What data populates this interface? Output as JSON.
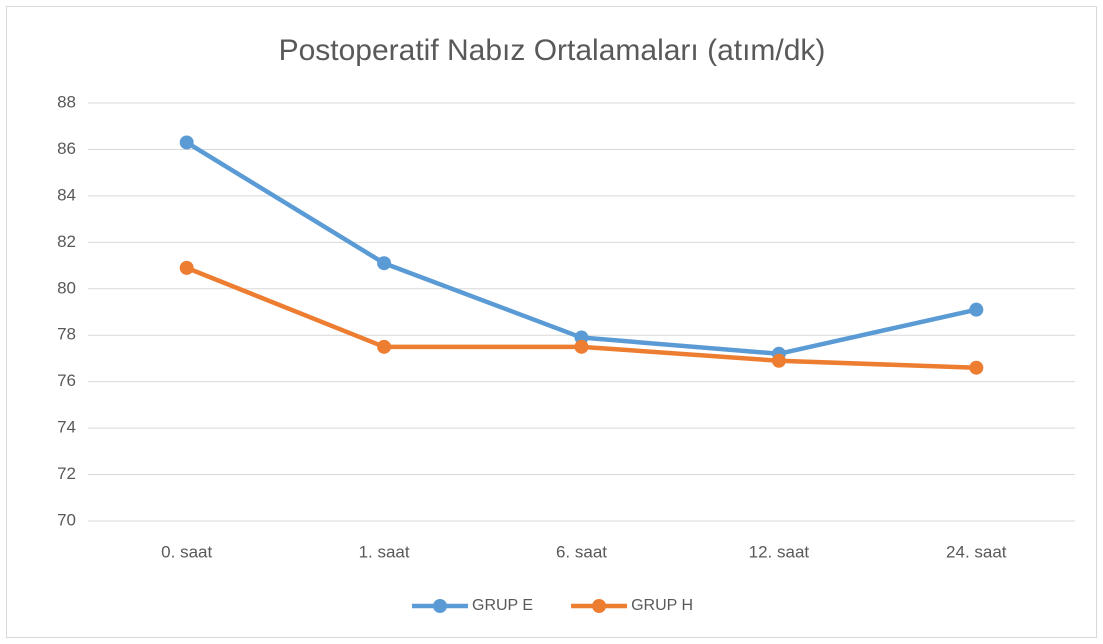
{
  "chart_data": {
    "type": "line",
    "title": "Postoperatif Nabız Ortalamaları (atım/dk)",
    "categories": [
      "0. saat",
      "1. saat",
      "6. saat",
      "12. saat",
      "24. saat"
    ],
    "series": [
      {
        "name": "GRUP E",
        "color": "#5b9bd5",
        "values": [
          86.3,
          81.1,
          77.9,
          77.2,
          79.1
        ]
      },
      {
        "name": "GRUP H",
        "color": "#ed7d31",
        "values": [
          80.9,
          77.5,
          77.5,
          76.9,
          76.6
        ]
      }
    ],
    "ylim": [
      70,
      88
    ],
    "yticks": [
      70,
      72,
      74,
      76,
      78,
      80,
      82,
      84,
      86,
      88
    ],
    "grid": true,
    "legend": "bottom"
  }
}
